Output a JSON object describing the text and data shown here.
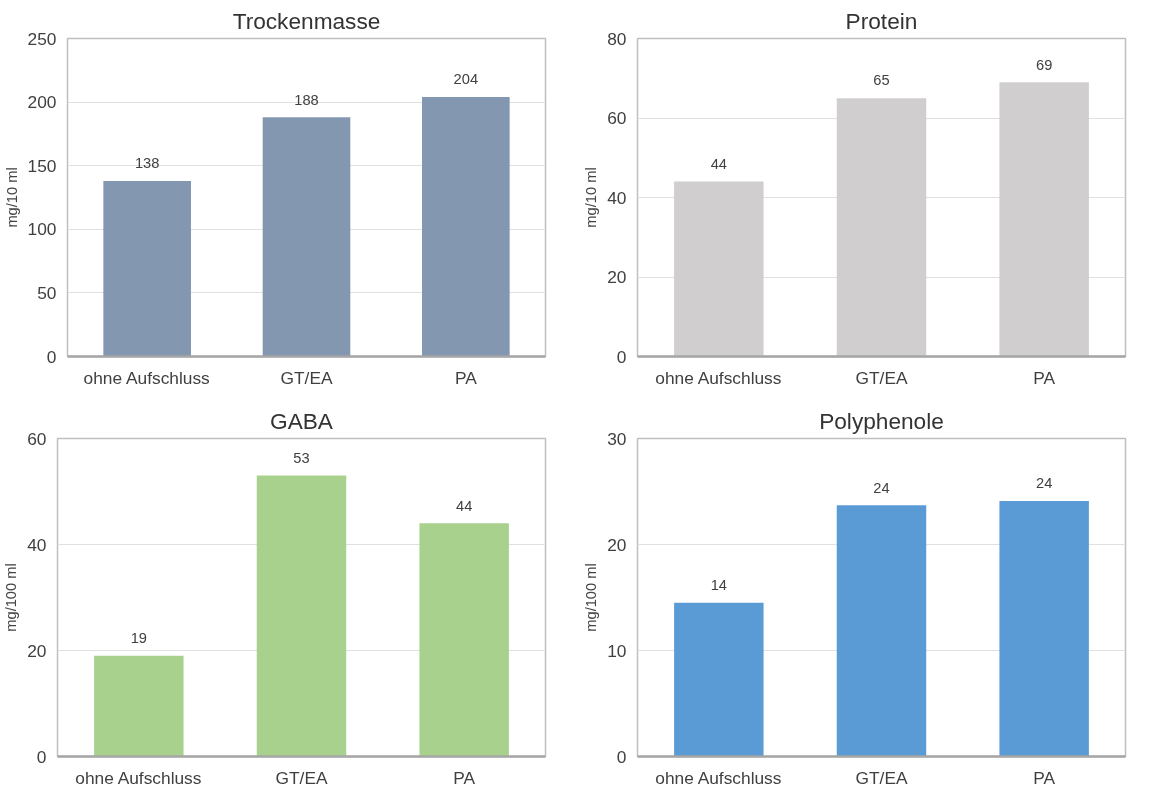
{
  "chart_data": [
    {
      "type": "bar",
      "title": "Trockenmasse",
      "ylabel": "mg/10 ml",
      "categories": [
        "ohne Aufschluss",
        "GT/EA",
        "PA"
      ],
      "values": [
        138,
        188,
        204
      ],
      "color": "#8497b0",
      "ylim": [
        0,
        250
      ],
      "yticks": [
        0,
        50,
        100,
        150,
        200,
        250
      ],
      "grid": "y",
      "data_labels": true
    },
    {
      "type": "bar",
      "title": "Protein",
      "ylabel": "mg/10 ml",
      "categories": [
        "ohne Aufschluss",
        "GT/EA",
        "PA"
      ],
      "values": [
        44,
        65,
        69
      ],
      "color": "#d0cece",
      "ylim": [
        0,
        80
      ],
      "yticks": [
        0,
        20,
        40,
        60,
        80
      ],
      "grid": "y",
      "data_labels": true
    },
    {
      "type": "bar",
      "title": "GABA",
      "ylabel": "mg/100 ml",
      "categories": [
        "ohne Aufschluss",
        "GT/EA",
        "PA"
      ],
      "values": [
        19,
        53,
        44
      ],
      "color": "#a9d18e",
      "ylim": [
        0,
        60
      ],
      "yticks": [
        0,
        20,
        40,
        60
      ],
      "grid": "y",
      "data_labels": true
    },
    {
      "type": "bar",
      "title": "Polyphenole",
      "ylabel": "mg/100 ml",
      "categories": [
        "ohne Aufschluss",
        "GT/EA",
        "PA"
      ],
      "values": [
        14.5,
        23.7,
        24.1
      ],
      "value_labels": [
        "14",
        "24",
        "24"
      ],
      "color": "#5b9bd5",
      "ylim": [
        0,
        30
      ],
      "yticks": [
        0,
        10,
        20,
        30
      ],
      "grid": "y"
    }
  ]
}
